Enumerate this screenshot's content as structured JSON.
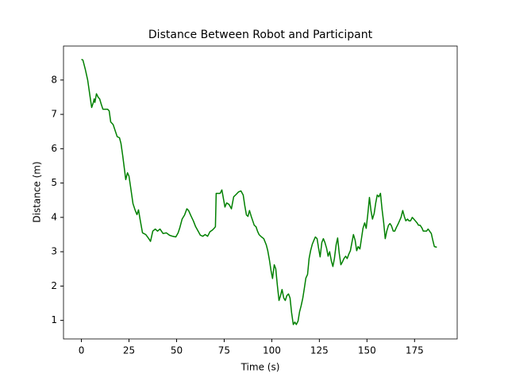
{
  "chart_data": {
    "type": "line",
    "title": "Distance Between Robot and Participant",
    "x_label": "Time (s)",
    "y_label": "Distance (m)",
    "x": [
      0,
      0.8,
      2.1,
      3.3,
      4.6,
      5.4,
      6.3,
      6.7,
      7.1,
      7.9,
      8.8,
      9.6,
      10.4,
      11.3,
      12.1,
      12.9,
      13.8,
      14.6,
      15.4,
      16.7,
      17.9,
      18.8,
      20,
      20.8,
      21.7,
      22.5,
      23.3,
      24.2,
      25,
      25.8,
      27.1,
      28.3,
      29.2,
      30,
      30.8,
      32.1,
      33.8,
      35.4,
      36.3,
      37.5,
      38.8,
      40,
      41.3,
      42.9,
      44.6,
      46.3,
      47.9,
      49.6,
      50.8,
      51.7,
      52.9,
      54.2,
      55.4,
      56.3,
      57.5,
      58.8,
      60,
      61.3,
      62.5,
      63.8,
      65,
      66.3,
      67.5,
      68.8,
      70,
      70.4,
      70.8,
      72.1,
      72.9,
      73.8,
      74.6,
      75.4,
      76.3,
      77.5,
      78.8,
      80,
      81.3,
      82.5,
      83.8,
      85,
      85.8,
      86.7,
      87.5,
      88.3,
      89.2,
      90,
      90.8,
      91.7,
      92.5,
      93.3,
      94.6,
      95.8,
      97.1,
      97.9,
      98.8,
      99.6,
      100.4,
      101.3,
      102.1,
      102.9,
      103.8,
      104.6,
      105.4,
      106.3,
      107.1,
      107.9,
      108.8,
      109.6,
      110.4,
      111.3,
      112.1,
      112.9,
      113.8,
      114.6,
      115.4,
      116.3,
      117.1,
      117.9,
      118.8,
      119.6,
      120.4,
      121.3,
      122.1,
      122.9,
      123.8,
      124.6,
      125.4,
      126.3,
      127.1,
      127.9,
      128.8,
      129.6,
      130.4,
      131.3,
      132.1,
      132.9,
      133.8,
      134.6,
      135.4,
      136.3,
      137.1,
      137.9,
      138.8,
      139.6,
      140.4,
      141.3,
      142.1,
      142.9,
      143.8,
      144.6,
      145.4,
      146.3,
      147.1,
      147.9,
      148.8,
      149.6,
      150.4,
      151.3,
      152.1,
      152.9,
      153.8,
      154.6,
      155.4,
      156.3,
      157.1,
      157.9,
      158.8,
      159.6,
      160.4,
      161.3,
      162.1,
      162.9,
      163.8,
      164.6,
      165.4,
      166.3,
      167.1,
      167.9,
      168.8,
      169.6,
      170.4,
      171.3,
      172.1,
      172.9,
      173.8,
      174.6,
      175.4,
      176.3,
      177.1,
      177.9,
      178.8,
      179.6,
      180.4,
      181.3,
      182.1,
      182.9,
      183.8,
      184.6,
      185.4,
      186.7
    ],
    "series": [
      {
        "color": "#008000",
        "values": [
          8.6,
          8.58,
          8.3,
          8.0,
          7.5,
          7.2,
          7.35,
          7.45,
          7.35,
          7.6,
          7.5,
          7.45,
          7.3,
          7.15,
          7.15,
          7.15,
          7.15,
          7.1,
          6.78,
          6.7,
          6.5,
          6.35,
          6.32,
          6.15,
          5.8,
          5.45,
          5.1,
          5.3,
          5.2,
          4.9,
          4.4,
          4.2,
          4.08,
          4.22,
          3.95,
          3.55,
          3.5,
          3.38,
          3.3,
          3.6,
          3.66,
          3.6,
          3.66,
          3.53,
          3.55,
          3.48,
          3.45,
          3.43,
          3.55,
          3.7,
          3.95,
          4.07,
          4.25,
          4.2,
          4.05,
          3.9,
          3.73,
          3.6,
          3.48,
          3.45,
          3.5,
          3.45,
          3.58,
          3.63,
          3.7,
          3.73,
          4.7,
          4.7,
          4.7,
          4.8,
          4.55,
          4.3,
          4.42,
          4.38,
          4.25,
          4.6,
          4.67,
          4.74,
          4.77,
          4.65,
          4.35,
          4.07,
          4.03,
          4.2,
          4.03,
          3.9,
          3.77,
          3.73,
          3.6,
          3.5,
          3.43,
          3.38,
          3.2,
          3.03,
          2.75,
          2.45,
          2.22,
          2.62,
          2.5,
          2.04,
          1.58,
          1.72,
          1.9,
          1.65,
          1.58,
          1.72,
          1.77,
          1.65,
          1.23,
          0.88,
          0.95,
          0.88,
          0.98,
          1.25,
          1.42,
          1.65,
          1.93,
          2.23,
          2.34,
          2.8,
          3.03,
          3.22,
          3.33,
          3.43,
          3.38,
          3.1,
          2.85,
          3.27,
          3.38,
          3.27,
          3.1,
          2.87,
          3.0,
          2.73,
          2.57,
          2.8,
          3.2,
          3.4,
          2.97,
          2.62,
          2.7,
          2.8,
          2.87,
          2.8,
          2.92,
          3.03,
          3.27,
          3.5,
          3.33,
          3.03,
          3.15,
          3.08,
          3.38,
          3.68,
          3.84,
          3.68,
          4.07,
          4.58,
          4.2,
          3.95,
          4.12,
          4.42,
          4.65,
          4.6,
          4.7,
          4.25,
          3.84,
          3.38,
          3.6,
          3.77,
          3.82,
          3.75,
          3.6,
          3.6,
          3.7,
          3.8,
          3.9,
          4.0,
          4.2,
          4.03,
          3.9,
          3.95,
          3.9,
          3.9,
          4.0,
          3.95,
          3.9,
          3.84,
          3.77,
          3.77,
          3.7,
          3.6,
          3.6,
          3.6,
          3.66,
          3.6,
          3.53,
          3.33,
          3.15,
          3.13
        ]
      }
    ],
    "xlim": [
      -9.4,
      197.4
    ],
    "ylim": [
      0.46,
      8.99
    ],
    "xticks": [
      0,
      25,
      50,
      75,
      100,
      125,
      150,
      175
    ],
    "yticks": [
      1,
      2,
      3,
      4,
      5,
      6,
      7,
      8
    ],
    "grid": false
  }
}
